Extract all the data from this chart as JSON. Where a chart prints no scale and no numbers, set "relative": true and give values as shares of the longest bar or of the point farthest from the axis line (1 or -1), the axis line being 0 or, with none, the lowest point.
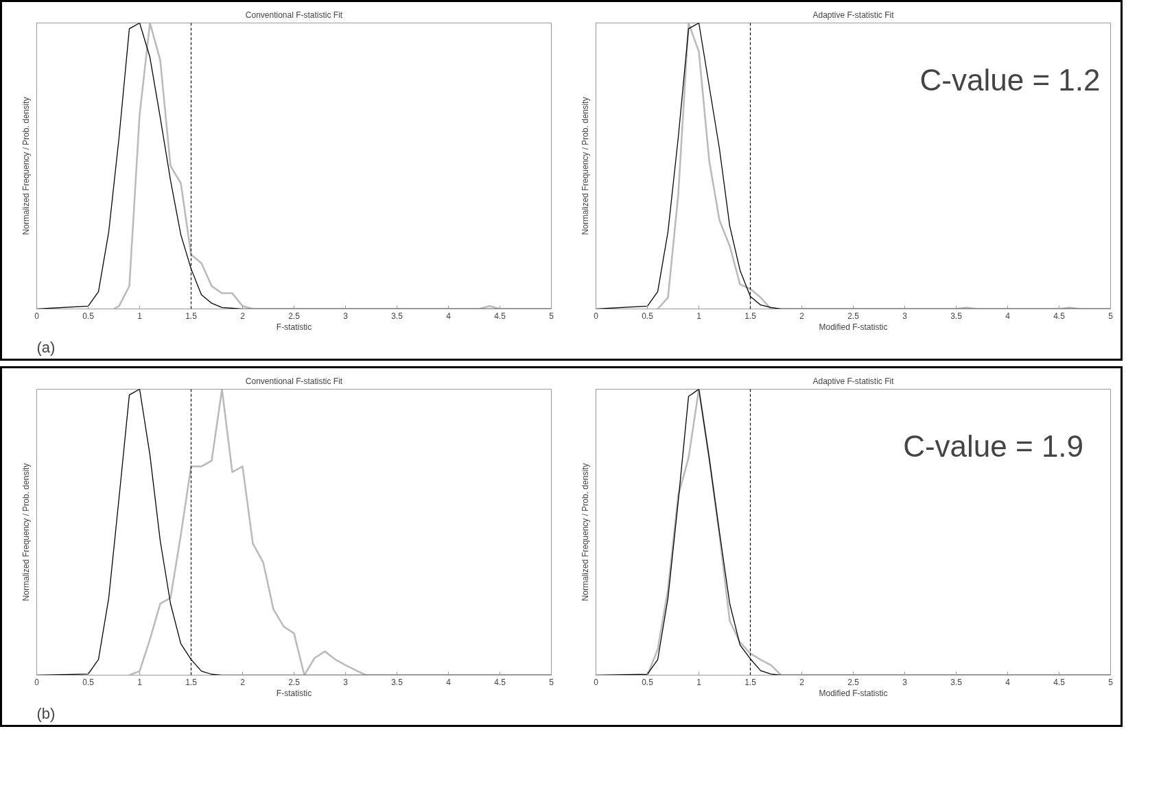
{
  "chart_data": [
    {
      "type": "line",
      "title": "Conventional F-statistic Fit",
      "xlabel": "F-statistic",
      "ylabel": "Normalized Frequency / Prob. density",
      "relative": true,
      "xlim": [
        0,
        5
      ],
      "xticks": [
        0,
        0.5,
        1,
        1.5,
        2,
        2.5,
        3,
        3.5,
        4,
        4.5,
        5
      ],
      "grid": false,
      "line_style": "solid",
      "annotations": [
        "(a)"
      ],
      "ref_lines": [
        {
          "axis": "x",
          "value": 1.5,
          "color": "#000000",
          "line_style": "dashed"
        }
      ],
      "series": [
        {
          "color": "#000000",
          "x": [
            0,
            0.5,
            0.6,
            0.7,
            0.8,
            0.9,
            1.0,
            1.1,
            1.2,
            1.3,
            1.4,
            1.5,
            1.6,
            1.7,
            1.8,
            2.0,
            5
          ],
          "values": [
            0,
            0.01,
            0.06,
            0.27,
            0.6,
            0.98,
            1.0,
            0.88,
            0.67,
            0.45,
            0.26,
            0.14,
            0.05,
            0.02,
            0.005,
            0,
            0
          ]
        },
        {
          "color": "#bbbbbb",
          "x": [
            0.75,
            0.8,
            0.9,
            1.0,
            1.1,
            1.2,
            1.3,
            1.4,
            1.5,
            1.6,
            1.7,
            1.8,
            1.9,
            2.0,
            2.1,
            4.3,
            4.4,
            4.5,
            5
          ],
          "values": [
            0,
            0.01,
            0.08,
            0.68,
            1.0,
            0.87,
            0.5,
            0.44,
            0.19,
            0.16,
            0.08,
            0.055,
            0.055,
            0.01,
            0,
            0,
            0.01,
            0,
            0
          ]
        }
      ]
    },
    {
      "type": "line",
      "title": "Adaptive F-statistic Fit",
      "xlabel": "Modified F-statistic",
      "ylabel": "Normalized Frequency / Prob. density",
      "relative": true,
      "xlim": [
        0,
        5
      ],
      "xticks": [
        0,
        0.5,
        1,
        1.5,
        2,
        2.5,
        3,
        3.5,
        4,
        4.5,
        5
      ],
      "grid": false,
      "line_style": "solid",
      "annotations": [
        "C-value = 1.2"
      ],
      "ref_lines": [
        {
          "axis": "x",
          "value": 1.5,
          "color": "#000000",
          "line_style": "dashed"
        }
      ],
      "series": [
        {
          "color": "#000000",
          "x": [
            0,
            0.5,
            0.6,
            0.7,
            0.8,
            0.9,
            1.0,
            1.1,
            1.2,
            1.3,
            1.4,
            1.5,
            1.6,
            1.7,
            1.8,
            5
          ],
          "values": [
            0,
            0.01,
            0.06,
            0.27,
            0.6,
            0.98,
            1.0,
            0.78,
            0.56,
            0.29,
            0.135,
            0.044,
            0.014,
            0.005,
            0,
            0
          ]
        },
        {
          "color": "#bbbbbb",
          "x": [
            0.6,
            0.7,
            0.8,
            0.9,
            1.0,
            1.1,
            1.2,
            1.3,
            1.4,
            1.5,
            1.6,
            1.7,
            3.5,
            3.6,
            3.7,
            4.5,
            4.6,
            4.7,
            5
          ],
          "values": [
            0,
            0.04,
            0.4,
            1.0,
            0.9,
            0.52,
            0.31,
            0.22,
            0.086,
            0.07,
            0.04,
            0,
            0,
            0.005,
            0,
            0,
            0.005,
            0,
            0
          ]
        }
      ]
    },
    {
      "type": "line",
      "title": "Conventional F-statistic Fit",
      "xlabel": "F-statistic",
      "ylabel": "Normalized Frequency / Prob. density",
      "relative": true,
      "xlim": [
        0,
        5
      ],
      "xticks": [
        0,
        0.5,
        1,
        1.5,
        2,
        2.5,
        3,
        3.5,
        4,
        4.5,
        5
      ],
      "grid": false,
      "line_style": "solid",
      "annotations": [
        "(b)"
      ],
      "ref_lines": [
        {
          "axis": "x",
          "value": 1.5,
          "color": "#000000",
          "line_style": "dashed"
        }
      ],
      "series": [
        {
          "color": "#000000",
          "x": [
            0,
            0.5,
            0.6,
            0.7,
            0.8,
            0.9,
            1.0,
            1.1,
            1.2,
            1.3,
            1.4,
            1.5,
            1.6,
            1.7,
            1.8,
            5
          ],
          "values": [
            0,
            0.004,
            0.055,
            0.27,
            0.62,
            0.98,
            1.0,
            0.77,
            0.47,
            0.25,
            0.11,
            0.055,
            0.014,
            0.003,
            0,
            0
          ]
        },
        {
          "color": "#bbbbbb",
          "x": [
            0.9,
            1.0,
            1.1,
            1.2,
            1.3,
            1.4,
            1.5,
            1.6,
            1.7,
            1.8,
            1.9,
            2.0,
            2.1,
            2.2,
            2.3,
            2.4,
            2.5,
            2.6,
            2.7,
            2.8,
            2.9,
            3.0,
            3.1,
            3.2,
            5
          ],
          "values": [
            0,
            0.014,
            0.125,
            0.25,
            0.27,
            0.49,
            0.73,
            0.73,
            0.75,
            1.0,
            0.71,
            0.73,
            0.46,
            0.395,
            0.23,
            0.17,
            0.146,
            0,
            0.06,
            0.083,
            0.055,
            0.035,
            0.017,
            0,
            0
          ]
        }
      ]
    },
    {
      "type": "line",
      "title": "Adaptive F-statistic Fit",
      "xlabel": "Modified F-statistic",
      "ylabel": "Normalized Frequency / Prob. density",
      "relative": true,
      "xlim": [
        0,
        5
      ],
      "xticks": [
        0,
        0.5,
        1,
        1.5,
        2,
        2.5,
        3,
        3.5,
        4,
        4.5,
        5
      ],
      "grid": false,
      "line_style": "solid",
      "annotations": [
        "C-value  =  1.9"
      ],
      "ref_lines": [
        {
          "axis": "x",
          "value": 1.5,
          "color": "#000000",
          "line_style": "dashed"
        }
      ],
      "series": [
        {
          "color": "#000000",
          "x": [
            0,
            0.5,
            0.6,
            0.7,
            0.8,
            0.9,
            1.0,
            1.1,
            1.2,
            1.3,
            1.4,
            1.5,
            1.6,
            1.7,
            1.8,
            5
          ],
          "values": [
            0,
            0.003,
            0.054,
            0.27,
            0.61,
            0.975,
            1.0,
            0.76,
            0.5,
            0.25,
            0.105,
            0.057,
            0.016,
            0.004,
            0,
            0
          ]
        },
        {
          "color": "#bbbbbb",
          "x": [
            0.5,
            0.6,
            0.7,
            0.8,
            0.9,
            1.0,
            1.1,
            1.2,
            1.3,
            1.4,
            1.5,
            1.6,
            1.7,
            1.8,
            5
          ],
          "values": [
            0,
            0.09,
            0.3,
            0.63,
            0.76,
            1.0,
            0.76,
            0.49,
            0.19,
            0.114,
            0.076,
            0.054,
            0.035,
            0,
            0
          ]
        }
      ]
    }
  ]
}
